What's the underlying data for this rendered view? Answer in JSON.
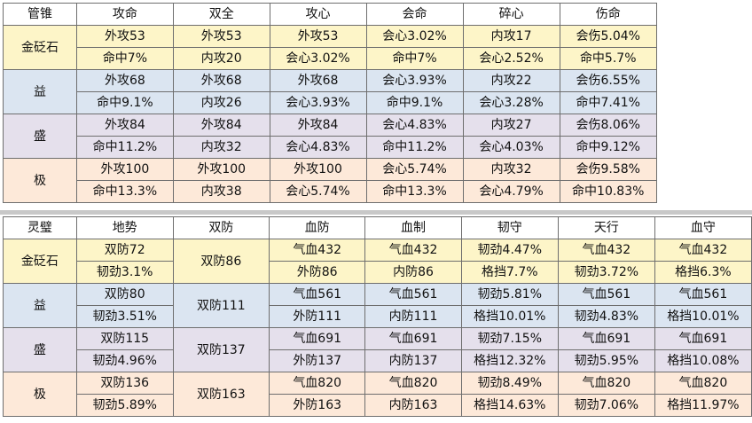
{
  "table1": {
    "header": [
      "管锥",
      "攻命",
      "双全",
      "攻心",
      "会命",
      "碎心",
      "伤命"
    ],
    "groups": [
      {
        "tier": "金砭石",
        "rows": [
          [
            "外攻53",
            "外攻53",
            "外攻53",
            "会心3.02%",
            "内攻17",
            "会伤5.04%"
          ],
          [
            "命中7%",
            "内攻20",
            "会心3.02%",
            "命中7%",
            "会心2.52%",
            "命中5.7%"
          ]
        ]
      },
      {
        "tier": "益",
        "rows": [
          [
            "外攻68",
            "外攻68",
            "外攻68",
            "会心3.93%",
            "内攻22",
            "会伤6.55%"
          ],
          [
            "命中9.1%",
            "内攻26",
            "会心3.93%",
            "命中9.1%",
            "会心3.28%",
            "命中7.41%"
          ]
        ]
      },
      {
        "tier": "盛",
        "rows": [
          [
            "外攻84",
            "外攻84",
            "外攻84",
            "会心4.83%",
            "内攻27",
            "会伤8.06%"
          ],
          [
            "命中11.2%",
            "内攻32",
            "会心4.83%",
            "命中11.2%",
            "会心4.03%",
            "命中9.12%"
          ]
        ]
      },
      {
        "tier": "极",
        "rows": [
          [
            "外攻100",
            "外攻100",
            "外攻100",
            "会心5.74%",
            "内攻32",
            "会伤9.58%"
          ],
          [
            "命中13.3%",
            "内攻38",
            "会心5.74%",
            "命中13.3%",
            "会心4.79%",
            "命中10.83%"
          ]
        ]
      }
    ]
  },
  "table2": {
    "header": [
      "灵璧",
      "地势",
      "双防",
      "血防",
      "血制",
      "韧守",
      "天行",
      "血守"
    ],
    "groups": [
      {
        "tier": "金砭石",
        "shuangfang": "双防86",
        "rows": [
          [
            "双防72",
            "气血432",
            "气血432",
            "韧劲4.47%",
            "气血432",
            "气血432"
          ],
          [
            "韧劲3.1%",
            "外防86",
            "内防86",
            "格挡7.7%",
            "韧劲3.72%",
            "格挡6.3%"
          ]
        ]
      },
      {
        "tier": "益",
        "shuangfang": "双防111",
        "rows": [
          [
            "双防80",
            "气血561",
            "气血561",
            "韧劲5.81%",
            "气血561",
            "气血561"
          ],
          [
            "韧劲3.51%",
            "外防111",
            "内防111",
            "格挡10.01%",
            "韧劲4.83%",
            "格挡10.01%"
          ]
        ]
      },
      {
        "tier": "盛",
        "shuangfang": "双防137",
        "rows": [
          [
            "双防115",
            "气血691",
            "气血691",
            "韧劲7.15%",
            "气血691",
            "气血691"
          ],
          [
            "韧劲4.96%",
            "外防137",
            "内防137",
            "格挡12.32%",
            "韧劲5.95%",
            "格挡10.08%"
          ]
        ]
      },
      {
        "tier": "极",
        "shuangfang": "双防163",
        "rows": [
          [
            "双防136",
            "气血820",
            "气血820",
            "韧劲8.49%",
            "气血820",
            "气血820"
          ],
          [
            "韧劲5.89%",
            "外防163",
            "内防163",
            "格挡14.63%",
            "韧劲7.06%",
            "格挡11.97%"
          ]
        ]
      }
    ]
  },
  "colors": {
    "tier_bg": [
      "#fdf5c8",
      "#dbe5f1",
      "#e5e0ec",
      "#fde9d9"
    ],
    "border": "#6e6e6e",
    "separator": "#c8c8c8"
  }
}
